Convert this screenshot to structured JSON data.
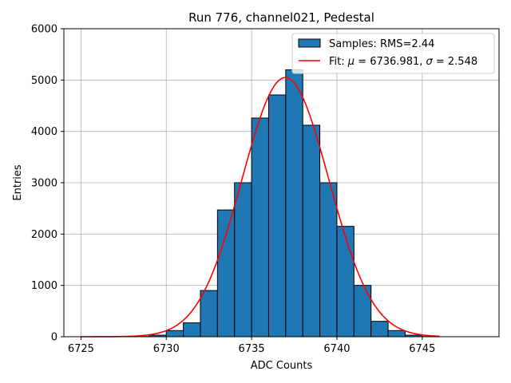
{
  "chart_data": {
    "type": "bar",
    "title": "Run 776, channel021, Pedestal",
    "xlabel": "ADC Counts",
    "ylabel": "Entries",
    "xlim": [
      6724,
      6749.5
    ],
    "ylim": [
      0,
      6000
    ],
    "xticks": [
      6725,
      6730,
      6735,
      6740,
      6745
    ],
    "yticks": [
      0,
      1000,
      2000,
      3000,
      4000,
      5000,
      6000
    ],
    "grid": true,
    "legend_position": "top-right",
    "bar_color": "#1f77b4",
    "fit_color": "#ff0000",
    "bin_width": 1,
    "series": [
      {
        "name": "Samples: RMS=2.44",
        "bin_left_edges": [
          6727,
          6728,
          6729,
          6730,
          6731,
          6732,
          6733,
          6734,
          6735,
          6736,
          6737,
          6738,
          6739,
          6740,
          6741,
          6742,
          6743,
          6744,
          6745
        ],
        "values": [
          0,
          5,
          30,
          120,
          270,
          900,
          2470,
          3000,
          4260,
          4710,
          5200,
          4120,
          3000,
          2150,
          1000,
          300,
          120,
          30,
          5
        ]
      }
    ],
    "fit": {
      "name": "Fit: μ = 6736.981, σ = 2.548",
      "name_prefix": "Fit: ",
      "mu_symbol": "μ",
      "mu_text": " = 6736.981, ",
      "sigma_symbol": "σ",
      "sigma_text": " = 2.548",
      "mu": 6736.981,
      "sigma": 2.548,
      "amplitude": 5050,
      "x_range": [
        6725,
        6746
      ]
    }
  }
}
